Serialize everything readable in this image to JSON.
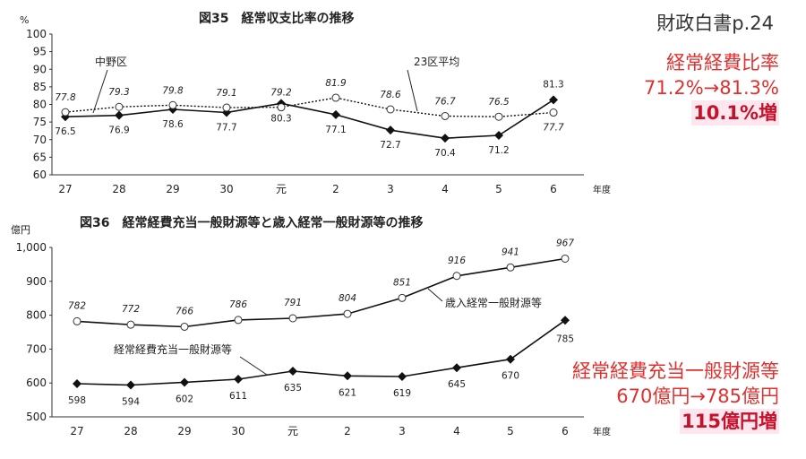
{
  "source": "財政白書p.24",
  "notes": {
    "ratio": {
      "line1": "経常経費比率",
      "line2": "71.2%→81.3%",
      "highlight": "10.1%増"
    },
    "funds": {
      "line1": "経常経費充当一般財源等",
      "line2": "670億円→785億円",
      "highlight": "115億円増"
    }
  },
  "chart_data": [
    {
      "type": "line",
      "title": "図35　経常収支比率の推移",
      "ylabel": "%",
      "xlabel": "年度",
      "categories": [
        "27",
        "28",
        "29",
        "30",
        "元",
        "2",
        "3",
        "4",
        "5",
        "6"
      ],
      "ylim": [
        60,
        100
      ],
      "yticks": [
        60,
        65,
        70,
        75,
        80,
        85,
        90,
        95,
        100
      ],
      "series": [
        {
          "name": "中野区",
          "values": [
            76.5,
            76.9,
            78.6,
            77.7,
            80.3,
            77.1,
            72.7,
            70.4,
            71.2,
            81.3
          ],
          "labels": [
            "76.5",
            "76.9",
            "78.6",
            "77.7",
            "80.3",
            "77.1",
            "72.7",
            "70.4",
            "71.2",
            "81.3"
          ],
          "style": "solid",
          "marker": "diamond"
        },
        {
          "name": "23区平均",
          "values": [
            77.8,
            79.3,
            79.8,
            79.1,
            79.2,
            81.9,
            78.6,
            76.7,
            76.5,
            77.7
          ],
          "labels": [
            "77.8",
            "79.3",
            "79.8",
            "79.1",
            "79.2",
            "81.9",
            "78.6",
            "76.7",
            "76.5",
            "77.7"
          ],
          "style": "dotted",
          "marker": "circle"
        }
      ]
    },
    {
      "type": "line",
      "title": "図36　経常経費充当一般財源等と歳入経常一般財源等の推移",
      "ylabel": "億円",
      "xlabel": "年度",
      "categories": [
        "27",
        "28",
        "29",
        "30",
        "元",
        "2",
        "3",
        "4",
        "5",
        "6"
      ],
      "ylim": [
        500,
        1000
      ],
      "yticks": [
        500,
        600,
        700,
        800,
        900,
        1000
      ],
      "ytick_labels": [
        "500",
        "600",
        "700",
        "800",
        "900",
        "1,000"
      ],
      "series": [
        {
          "name": "歳入経常一般財源等",
          "values": [
            782,
            772,
            766,
            786,
            791,
            804,
            851,
            916,
            941,
            967
          ],
          "labels": [
            "782",
            "772",
            "766",
            "786",
            "791",
            "804",
            "851",
            "916",
            "941",
            "967"
          ],
          "style": "solid",
          "marker": "circle"
        },
        {
          "name": "経常経費充当一般財源等",
          "values": [
            598,
            594,
            602,
            611,
            635,
            621,
            619,
            645,
            670,
            785
          ],
          "labels": [
            "598",
            "594",
            "602",
            "611",
            "635",
            "621",
            "619",
            "645",
            "670",
            "785"
          ],
          "style": "solid",
          "marker": "diamond"
        }
      ]
    }
  ]
}
